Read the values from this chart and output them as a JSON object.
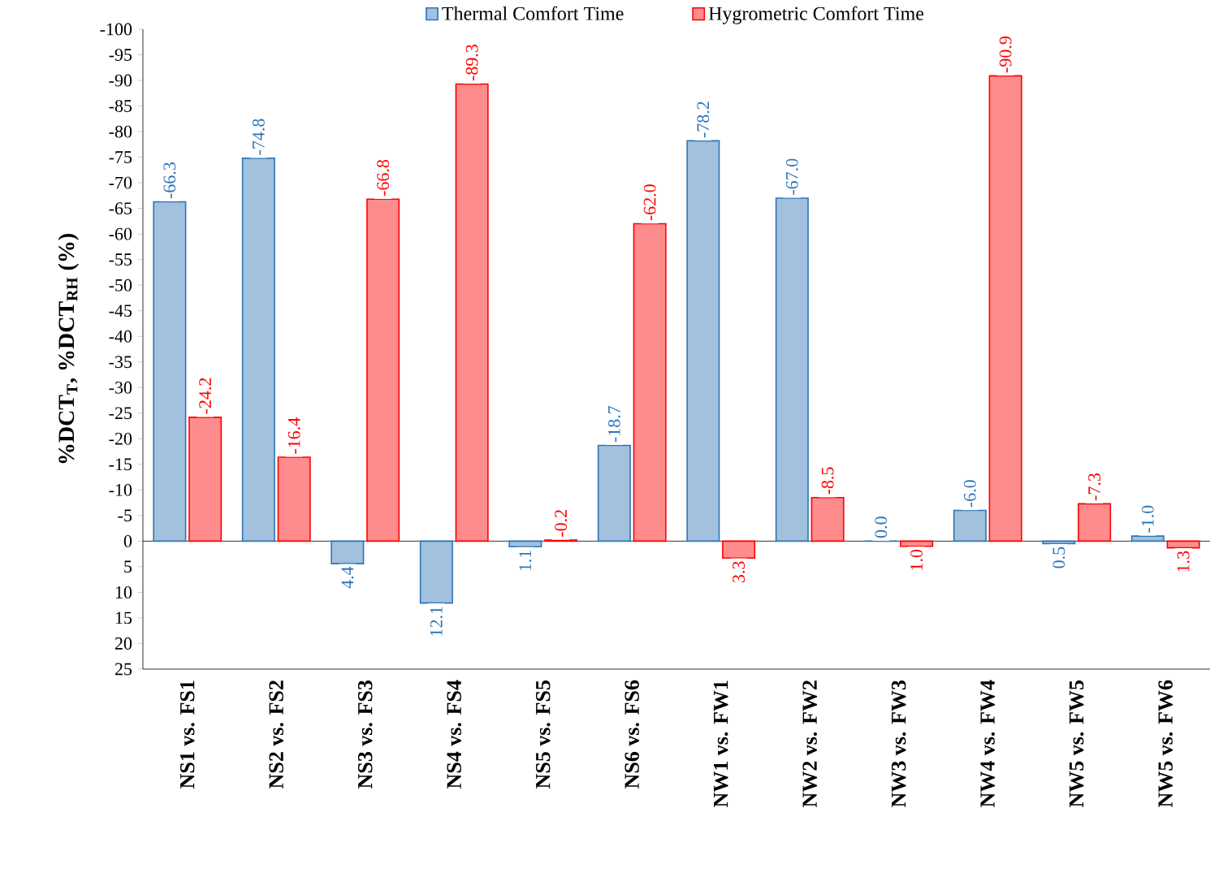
{
  "chart_data": {
    "type": "bar",
    "ylabel": "%DCT$_{T}$, %DCT$_{RH}$ (%)",
    "categories": [
      "NS1 vs. FS1",
      "NS2 vs. FS2",
      "NS3 vs. FS3",
      "NS4 vs. FS4",
      "NS5 vs. FS5",
      "NS6 vs. FS6",
      "NW1 vs. FW1",
      "NW2 vs. FW2",
      "NW3 vs. FW3",
      "NW4 vs. FW4",
      "NW5 vs. FW5",
      "NW5 vs. FW6"
    ],
    "series": [
      {
        "name": "Thermal Comfort Time",
        "color": "#2e75b6",
        "values": [
          -66.3,
          -74.8,
          4.4,
          12.1,
          1.1,
          -18.7,
          -78.2,
          -67.0,
          0.0,
          -6.0,
          0.5,
          -1.0
        ],
        "value_labels": [
          "-66.3",
          "-74.8",
          "4.4",
          "12.1",
          "1.1",
          "-18.7",
          "-78.2",
          "-67.0",
          "0.0",
          "-6.0",
          "0.5",
          "-1.0"
        ]
      },
      {
        "name": "Hygrometric Comfort Time",
        "color": "#ff0000",
        "values": [
          -24.2,
          -16.4,
          -66.8,
          -89.3,
          -0.2,
          -62.0,
          3.3,
          -8.5,
          1.0,
          -90.9,
          -7.3,
          1.3
        ],
        "value_labels": [
          "-24.2",
          "-16.4",
          "-66.8",
          "-89.3",
          "-0.2",
          "-62.0",
          "3.3",
          "-8.5",
          "1.0",
          "-90.9",
          "-7.3",
          "1.3"
        ]
      }
    ],
    "ylim": [
      25,
      -100
    ],
    "yticks": [
      -100,
      -95,
      -90,
      -85,
      -80,
      -75,
      -70,
      -65,
      -60,
      -55,
      -50,
      -45,
      -40,
      -35,
      -30,
      -25,
      -20,
      -15,
      -10,
      -5,
      0,
      5,
      10,
      15,
      20,
      25
    ],
    "legend": "top"
  }
}
